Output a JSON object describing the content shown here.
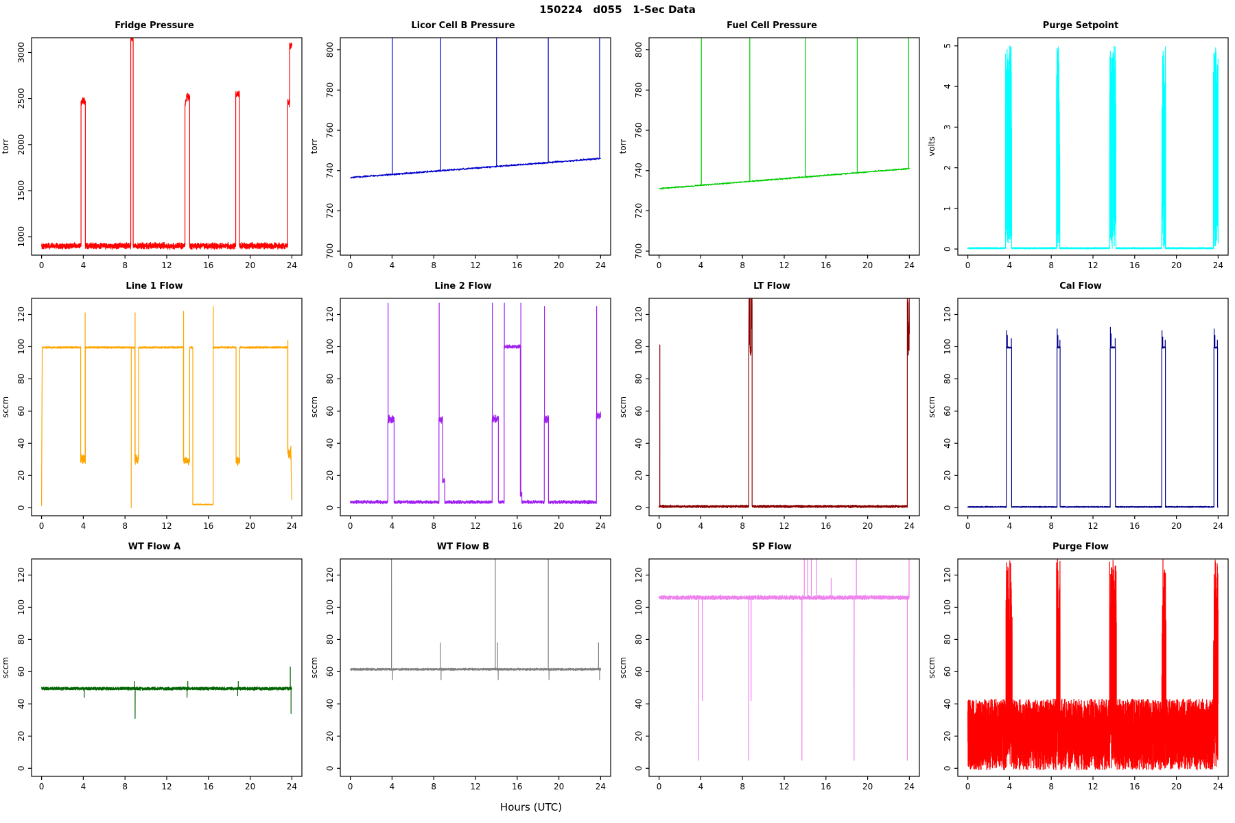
{
  "header": {
    "title": "150224   d055   1-Sec Data"
  },
  "chart_data": {
    "type": "line",
    "layout": "3 rows x 4 columns of 1-second time series panels",
    "x_axis": {
      "label": "Hours (UTC)",
      "range": [
        0,
        24
      ],
      "ticks": [
        0,
        4,
        8,
        12,
        16,
        20,
        24
      ]
    },
    "event_times_hours": [
      3.9,
      8.7,
      13.9,
      18.8,
      23.8
    ],
    "panels": [
      {
        "title": "Fridge Pressure",
        "ylabel": "torr",
        "color": "#FF0000",
        "ylim": [
          800,
          3160
        ],
        "yticks": [
          1000,
          1500,
          2000,
          2500,
          3000
        ],
        "step": 0.01,
        "seed": 101,
        "segments": [
          [
            0,
            3.78,
            900,
            900,
            40
          ],
          [
            3.78,
            3.95,
            2440,
            2480,
            40
          ],
          [
            3.95,
            4.2,
            2470,
            2470,
            55
          ],
          [
            4.2,
            8.55,
            900,
            900,
            40
          ],
          [
            8.55,
            8.78,
            3140,
            3140,
            30
          ],
          [
            8.78,
            13.75,
            900,
            900,
            40
          ],
          [
            13.75,
            13.9,
            2430,
            2480,
            40
          ],
          [
            13.9,
            14.2,
            2520,
            2520,
            55
          ],
          [
            14.2,
            18.62,
            900,
            900,
            40
          ],
          [
            18.62,
            18.97,
            2545,
            2545,
            45
          ],
          [
            18.97,
            23.6,
            900,
            900,
            40
          ],
          [
            23.6,
            23.78,
            2450,
            2450,
            60
          ],
          [
            23.78,
            24,
            3070,
            3075,
            40
          ]
        ],
        "spikes": []
      },
      {
        "title": "Licor Cell B Pressure",
        "ylabel": "torr",
        "color": "#0000CD",
        "ylim": [
          698,
          806
        ],
        "yticks": [
          700,
          720,
          740,
          760,
          780,
          800
        ],
        "step": 0.02,
        "seed": 202,
        "segments": [
          [
            0,
            24,
            736.5,
            746,
            0.5
          ]
        ],
        "spikes": [
          [
            4.02,
            806
          ],
          [
            8.66,
            806
          ],
          [
            14.02,
            806
          ],
          [
            18.98,
            806
          ],
          [
            23.9,
            806
          ]
        ]
      },
      {
        "title": "Fuel Cell Pressure",
        "ylabel": "torr",
        "color": "#00CC00",
        "ylim": [
          698,
          806
        ],
        "yticks": [
          700,
          720,
          740,
          760,
          780,
          800
        ],
        "step": 0.02,
        "seed": 303,
        "segments": [
          [
            0,
            24,
            731,
            741,
            0.4
          ]
        ],
        "spikes": [
          [
            4.05,
            806
          ],
          [
            8.7,
            806
          ],
          [
            14.05,
            806
          ],
          [
            19.0,
            806
          ],
          [
            23.92,
            806
          ]
        ]
      },
      {
        "title": "Purge Setpoint",
        "ylabel": "volts",
        "color": "#00FFFF",
        "ylim": [
          -0.15,
          5.2
        ],
        "yticks": [
          0,
          1,
          2,
          3,
          4,
          5
        ],
        "step": 0.004,
        "seed": 404,
        "segments": [
          [
            0,
            3.62,
            0.02,
            0.02,
            0.02
          ],
          [
            3.62,
            4.2,
            2.5,
            2.5,
            2.5,
            "u"
          ],
          [
            4.2,
            8.5,
            0.02,
            0.02,
            0.02
          ],
          [
            8.5,
            8.82,
            2.5,
            2.5,
            2.5,
            "u"
          ],
          [
            8.82,
            13.6,
            0.02,
            0.02,
            0.02
          ],
          [
            13.6,
            14.2,
            2.5,
            2.5,
            2.5,
            "u"
          ],
          [
            14.2,
            18.6,
            0.02,
            0.02,
            0.02
          ],
          [
            18.6,
            18.97,
            2.5,
            2.5,
            2.5,
            "u"
          ],
          [
            18.97,
            23.55,
            0.02,
            0.02,
            0.02
          ],
          [
            23.55,
            24,
            2.5,
            2.5,
            2.5,
            "u"
          ]
        ],
        "spikes": []
      },
      {
        "title": "Line 1 Flow",
        "ylabel": "sccm",
        "color": "#FFA500",
        "ylim": [
          -5,
          130
        ],
        "yticks": [
          0,
          20,
          40,
          60,
          80,
          100,
          120
        ],
        "step": 0.01,
        "seed": 505,
        "segments": [
          [
            0,
            0.06,
            1,
            99,
            0
          ],
          [
            0.06,
            3.75,
            99.5,
            99.5,
            0.7
          ],
          [
            3.75,
            4.2,
            30,
            30,
            3.5
          ],
          [
            4.2,
            8.95,
            99.5,
            99.5,
            0.7
          ],
          [
            8.95,
            9.3,
            30,
            30,
            3.5
          ],
          [
            9.3,
            13.6,
            99.5,
            99.5,
            0.7
          ],
          [
            13.6,
            14.2,
            29,
            29,
            3
          ],
          [
            14.2,
            14.5,
            99.5,
            99.5,
            0.7
          ],
          [
            14.5,
            16.45,
            2,
            2,
            0.4
          ],
          [
            16.45,
            18.65,
            99.5,
            99.5,
            0.7
          ],
          [
            18.65,
            19.0,
            29,
            29,
            3
          ],
          [
            19.0,
            23.6,
            99.5,
            99.5,
            0.7
          ],
          [
            23.6,
            23.9,
            34,
            34,
            4
          ],
          [
            23.9,
            24,
            37,
            3,
            2
          ]
        ],
        "spikes": [
          [
            4.18,
            121
          ],
          [
            8.6,
            0
          ],
          [
            8.97,
            121
          ],
          [
            13.62,
            122
          ],
          [
            16.47,
            125
          ],
          [
            23.62,
            104
          ]
        ]
      },
      {
        "title": "Line 2 Flow",
        "ylabel": "sccm",
        "color": "#A020F0",
        "ylim": [
          -5,
          130
        ],
        "yticks": [
          0,
          20,
          40,
          60,
          80,
          100,
          120
        ],
        "step": 0.01,
        "seed": 606,
        "segments": [
          [
            0,
            3.6,
            3.5,
            3.5,
            1.2
          ],
          [
            3.6,
            4.2,
            55,
            55,
            3
          ],
          [
            4.2,
            8.5,
            3.5,
            3.5,
            1.2
          ],
          [
            8.5,
            8.85,
            55,
            55,
            3
          ],
          [
            8.85,
            9.05,
            17,
            17,
            2
          ],
          [
            9.05,
            13.6,
            3.5,
            3.5,
            1.2
          ],
          [
            13.6,
            14.2,
            55,
            55,
            3
          ],
          [
            14.2,
            14.75,
            3.5,
            3.5,
            1.2
          ],
          [
            14.75,
            16.3,
            100,
            100,
            1.2
          ],
          [
            16.3,
            16.45,
            8,
            8,
            2
          ],
          [
            16.45,
            18.6,
            3.5,
            3.5,
            1.2
          ],
          [
            18.6,
            19.0,
            55,
            55,
            3
          ],
          [
            19.0,
            23.6,
            3.5,
            3.5,
            1.2
          ],
          [
            23.6,
            24,
            57,
            57,
            3
          ]
        ],
        "spikes": [
          [
            3.62,
            127
          ],
          [
            8.52,
            127
          ],
          [
            13.62,
            127
          ],
          [
            14.77,
            127
          ],
          [
            16.35,
            127
          ],
          [
            18.62,
            125
          ],
          [
            23.62,
            125
          ]
        ]
      },
      {
        "title": "LT Flow",
        "ylabel": "sccm",
        "color": "#8B0000",
        "ylim": [
          -5,
          130
        ],
        "yticks": [
          0,
          20,
          40,
          60,
          80,
          100,
          120
        ],
        "step": 0.008,
        "seed": 707,
        "segments": [
          [
            0,
            8.6,
            0.8,
            0.8,
            0.9
          ],
          [
            8.6,
            8.72,
            118,
            118,
            20,
            "u"
          ],
          [
            8.72,
            8.82,
            98,
            98,
            4
          ],
          [
            8.82,
            8.92,
            118,
            118,
            20,
            "u"
          ],
          [
            8.92,
            23.8,
            0.8,
            0.8,
            0.9
          ],
          [
            23.8,
            23.9,
            118,
            118,
            20,
            "u"
          ],
          [
            23.9,
            23.97,
            98,
            98,
            4
          ],
          [
            23.97,
            24,
            118,
            118,
            20,
            "u"
          ]
        ],
        "spikes": [
          [
            0.07,
            101
          ]
        ]
      },
      {
        "title": "Cal Flow",
        "ylabel": "sccm",
        "color": "#00008B",
        "ylim": [
          -5,
          130
        ],
        "yticks": [
          0,
          20,
          40,
          60,
          80,
          100,
          120
        ],
        "step": 0.01,
        "seed": 808,
        "segments": [
          [
            0,
            3.7,
            0.5,
            0.5,
            0.4
          ],
          [
            3.7,
            4.2,
            99.5,
            99.5,
            0.5
          ],
          [
            4.2,
            8.55,
            0.5,
            0.5,
            0.4
          ],
          [
            8.55,
            8.85,
            99.5,
            99.5,
            0.5
          ],
          [
            8.85,
            13.65,
            0.5,
            0.5,
            0.4
          ],
          [
            13.65,
            14.15,
            99.5,
            99.5,
            0.5
          ],
          [
            14.15,
            18.6,
            0.5,
            0.5,
            0.4
          ],
          [
            18.6,
            18.95,
            99.5,
            99.5,
            0.5
          ],
          [
            18.95,
            23.6,
            0.5,
            0.5,
            0.4
          ],
          [
            23.6,
            23.95,
            99.5,
            99.5,
            0.5
          ],
          [
            23.95,
            24,
            0.5,
            0.5,
            0.4
          ]
        ],
        "spikes": [
          [
            3.72,
            110
          ],
          [
            3.79,
            107
          ],
          [
            4.18,
            105
          ],
          [
            8.57,
            111
          ],
          [
            8.64,
            107
          ],
          [
            8.83,
            104
          ],
          [
            13.67,
            112
          ],
          [
            13.74,
            108
          ],
          [
            14.13,
            105
          ],
          [
            18.62,
            110
          ],
          [
            18.69,
            106
          ],
          [
            18.93,
            104
          ],
          [
            23.62,
            111
          ],
          [
            23.69,
            107
          ],
          [
            23.93,
            104
          ]
        ]
      },
      {
        "title": "WT Flow A",
        "ylabel": "sccm",
        "color": "#006400",
        "ylim": [
          -5,
          130
        ],
        "yticks": [
          0,
          20,
          40,
          60,
          80,
          100,
          120
        ],
        "step": 0.008,
        "seed": 909,
        "segments": [
          [
            0,
            24,
            49.5,
            49.5,
            1.1
          ]
        ],
        "spikes": [
          [
            4.1,
            44
          ],
          [
            8.93,
            54
          ],
          [
            8.97,
            31
          ],
          [
            13.95,
            44
          ],
          [
            14.02,
            54
          ],
          [
            18.8,
            45
          ],
          [
            18.86,
            54
          ],
          [
            23.85,
            63
          ],
          [
            23.92,
            34
          ]
        ]
      },
      {
        "title": "WT Flow B",
        "ylabel": "sccm",
        "color": "#808080",
        "ylim": [
          -5,
          130
        ],
        "yticks": [
          0,
          20,
          40,
          60,
          80,
          100,
          120
        ],
        "step": 0.008,
        "seed": 1010,
        "segments": [
          [
            0,
            24,
            61.5,
            61.5,
            0.8
          ]
        ],
        "spikes": [
          [
            3.95,
            130
          ],
          [
            4.05,
            55
          ],
          [
            8.62,
            78
          ],
          [
            8.7,
            55
          ],
          [
            13.9,
            130
          ],
          [
            14.12,
            78
          ],
          [
            14.18,
            55
          ],
          [
            18.98,
            130
          ],
          [
            19.05,
            55
          ],
          [
            23.8,
            78
          ],
          [
            23.9,
            55
          ]
        ]
      },
      {
        "title": "SP Flow",
        "ylabel": "sccm",
        "color": "#EE82EE",
        "ylim": [
          -5,
          130
        ],
        "yticks": [
          0,
          20,
          40,
          60,
          80,
          100,
          120
        ],
        "step": 0.008,
        "seed": 1111,
        "segments": [
          [
            0,
            24,
            106,
            106,
            1.5
          ]
        ],
        "spikes": [
          [
            3.8,
            5
          ],
          [
            4.15,
            42
          ],
          [
            8.6,
            5
          ],
          [
            8.82,
            42
          ],
          [
            13.7,
            5
          ],
          [
            13.92,
            130
          ],
          [
            14.25,
            130
          ],
          [
            14.6,
            130
          ],
          [
            15.1,
            130
          ],
          [
            16.5,
            118
          ],
          [
            18.7,
            5
          ],
          [
            18.92,
            130
          ],
          [
            23.8,
            5
          ],
          [
            23.97,
            130
          ]
        ]
      },
      {
        "title": "Purge Flow",
        "ylabel": "sccm",
        "color": "#FF0000",
        "ylim": [
          -5,
          130
        ],
        "yticks": [
          0,
          20,
          40,
          60,
          80,
          100,
          120
        ],
        "step": 0.005,
        "seed": 1212,
        "segments": [
          [
            0,
            3.65,
            21,
            21,
            22,
            "u"
          ],
          [
            3.65,
            4.25,
            65,
            65,
            65,
            "u"
          ],
          [
            4.25,
            8.5,
            21,
            21,
            22,
            "u"
          ],
          [
            8.5,
            8.85,
            65,
            65,
            65,
            "u"
          ],
          [
            8.85,
            13.6,
            21,
            21,
            22,
            "u"
          ],
          [
            13.6,
            14.25,
            65,
            65,
            65,
            "u"
          ],
          [
            14.25,
            18.6,
            21,
            21,
            22,
            "u"
          ],
          [
            18.6,
            19.0,
            65,
            65,
            65,
            "u"
          ],
          [
            19.0,
            23.55,
            21,
            21,
            22,
            "u"
          ],
          [
            23.55,
            24,
            65,
            65,
            65,
            "u"
          ]
        ],
        "spikes": []
      }
    ]
  }
}
